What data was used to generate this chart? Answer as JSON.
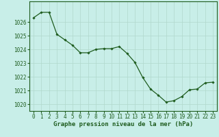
{
  "hours": [
    0,
    1,
    2,
    3,
    4,
    5,
    6,
    7,
    8,
    9,
    10,
    11,
    12,
    13,
    14,
    15,
    16,
    17,
    18,
    19,
    20,
    21,
    22,
    23
  ],
  "pressure": [
    1026.3,
    1026.7,
    1026.7,
    1025.1,
    1024.7,
    1024.3,
    1023.75,
    1023.75,
    1024.0,
    1024.05,
    1024.05,
    1024.2,
    1023.7,
    1023.05,
    1021.95,
    1021.1,
    1020.65,
    1020.15,
    1020.25,
    1020.55,
    1021.05,
    1021.1,
    1021.55,
    1021.6
  ],
  "line_color": "#1e5c1e",
  "marker": "D",
  "marker_size": 1.8,
  "background_color": "#c8eee8",
  "grid_color": "#b0d8cc",
  "xlabel": "Graphe pression niveau de la mer (hPa)",
  "ylim": [
    1019.5,
    1027.5
  ],
  "xlim": [
    -0.5,
    23.5
  ],
  "xticks": [
    0,
    1,
    2,
    3,
    4,
    5,
    6,
    7,
    8,
    9,
    10,
    11,
    12,
    13,
    14,
    15,
    16,
    17,
    18,
    19,
    20,
    21,
    22,
    23
  ],
  "yticks": [
    1020,
    1021,
    1022,
    1023,
    1024,
    1025,
    1026
  ],
  "tick_fontsize": 5.5,
  "xlabel_fontsize": 6.5,
  "axis_color": "#1e5c1e",
  "spine_color": "#1e5c1e",
  "linewidth": 0.9
}
